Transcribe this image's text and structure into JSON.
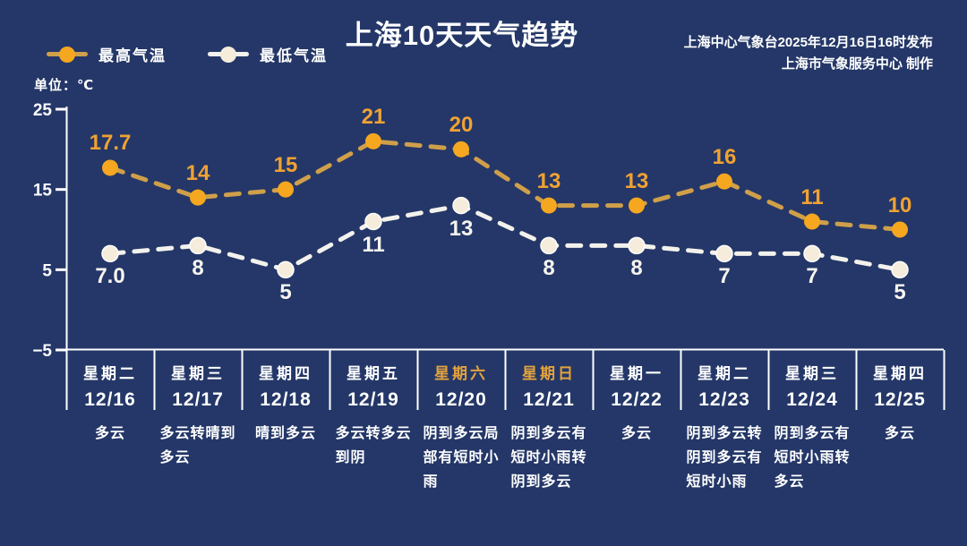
{
  "page": {
    "title": "上海10天天气趋势",
    "publisher_line1": "上海中心气象台2025年12月16日16时发布",
    "publisher_line2": "上海市气象服务中心 制作",
    "unit_label": "单位：℃"
  },
  "legend": {
    "high": {
      "label": "最高气温",
      "dot_color": "#f5a71f",
      "line_color": "#cf9f4a"
    },
    "low": {
      "label": "最低气温",
      "dot_color": "#f5ecdb",
      "line_color": "#f3f1ec"
    }
  },
  "colors": {
    "background": "#243768",
    "axis": "#ffffff",
    "high_point": "#f5a71f",
    "high_line": "#cf9f4a",
    "high_label": "#f0a232",
    "low_point": "#f5ecdb",
    "low_line": "#f3f1ec",
    "low_label": "#f7f5ef",
    "weekend_weekday": "#e3a33c"
  },
  "chart_data": {
    "type": "line",
    "title": "上海10天天气趋势",
    "unit": "℃",
    "ylim": [
      -5,
      25
    ],
    "yticks": [
      {
        "label": "25",
        "value": 25
      },
      {
        "label": "15",
        "value": 15
      },
      {
        "label": "5",
        "value": 5
      },
      {
        "label": "−5",
        "value": -5
      }
    ],
    "line_style": "dashed",
    "grid": false,
    "legend_position": "top-left",
    "categories": [
      "12/16",
      "12/17",
      "12/18",
      "12/19",
      "12/20",
      "12/21",
      "12/22",
      "12/23",
      "12/24",
      "12/25"
    ],
    "series": [
      {
        "name": "最高气温",
        "values": [
          17.7,
          14,
          15,
          21,
          20,
          13,
          13,
          16,
          11,
          10
        ],
        "labels": [
          "17.7",
          "14",
          "15",
          "21",
          "20",
          "13",
          "13",
          "16",
          "11",
          "10"
        ]
      },
      {
        "name": "最低气温",
        "values": [
          7.0,
          8,
          5,
          11,
          13,
          8,
          8,
          7,
          7,
          5
        ],
        "labels": [
          "7.0",
          "8",
          "5",
          "11",
          "13",
          "8",
          "8",
          "7",
          "7",
          "5"
        ]
      }
    ]
  },
  "days": [
    {
      "weekday": "星期二",
      "date": "12/16",
      "weather": "多云",
      "weekend": false
    },
    {
      "weekday": "星期三",
      "date": "12/17",
      "weather": "多云转晴到\n多云",
      "weekend": false
    },
    {
      "weekday": "星期四",
      "date": "12/18",
      "weather": "晴到多云",
      "weekend": false
    },
    {
      "weekday": "星期五",
      "date": "12/19",
      "weather": "多云转多云\n到阴",
      "weekend": false
    },
    {
      "weekday": "星期六",
      "date": "12/20",
      "weather": "阴到多云局\n部有短时小\n雨",
      "weekend": true
    },
    {
      "weekday": "星期日",
      "date": "12/21",
      "weather": "阴到多云有\n短时小雨转\n阴到多云",
      "weekend": true
    },
    {
      "weekday": "星期一",
      "date": "12/22",
      "weather": "多云",
      "weekend": false
    },
    {
      "weekday": "星期二",
      "date": "12/23",
      "weather": "阴到多云转\n阴到多云有\n短时小雨",
      "weekend": false
    },
    {
      "weekday": "星期三",
      "date": "12/24",
      "weather": "阴到多云有\n短时小雨转\n多云",
      "weekend": false
    },
    {
      "weekday": "星期四",
      "date": "12/25",
      "weather": "多云",
      "weekend": false
    }
  ]
}
